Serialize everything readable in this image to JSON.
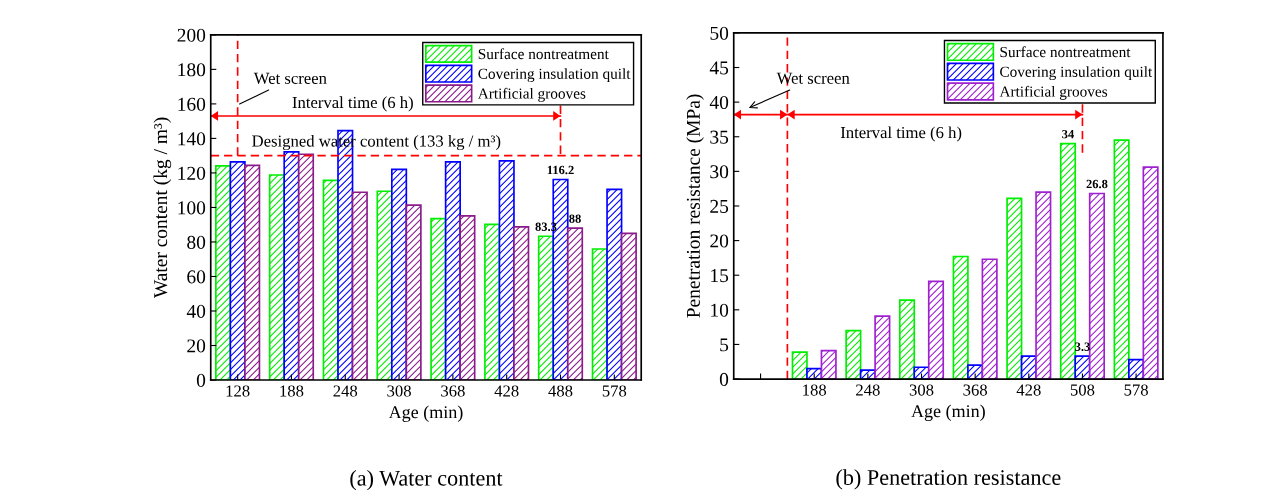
{
  "chart_data": [
    {
      "type": "bar",
      "title": "(a) Water content",
      "xlabel": "Age (min)",
      "ylabel": "Water content (kg / m³)",
      "categories": [
        "128",
        "188",
        "248",
        "308",
        "368",
        "428",
        "488",
        "578"
      ],
      "series": [
        {
          "name": "Surface nontreatment",
          "color": "#00ee00",
          "values": [
            124.1,
            118.8,
            115.7,
            109.4,
            93.5,
            90.2,
            83.3,
            75.9
          ],
          "value_labels": [
            null,
            null,
            null,
            null,
            null,
            null,
            "83.3",
            null
          ]
        },
        {
          "name": "Covering insulation quilt",
          "color": "#0000ff",
          "values": [
            126.4,
            132.2,
            144.5,
            122.1,
            126.4,
            127.0,
            116.2,
            110.5
          ],
          "value_labels": [
            null,
            null,
            null,
            null,
            null,
            null,
            "116.2",
            null
          ]
        },
        {
          "name": "Artificial grooves",
          "color": "#8b1a8b",
          "values": [
            124.4,
            130.8,
            108.8,
            101.3,
            95.1,
            88.7,
            88,
            85.0
          ],
          "value_labels": [
            null,
            null,
            null,
            null,
            null,
            null,
            "88",
            null
          ]
        }
      ],
      "ylim": [
        0,
        200
      ],
      "yticks": [
        0,
        20,
        40,
        60,
        80,
        100,
        120,
        140,
        160,
        180,
        200
      ],
      "ref_lines": [
        {
          "axis": "x",
          "value": "128",
          "label": "Wet screen",
          "color": "#ff0000",
          "line_style": "dashed"
        },
        {
          "axis": "x",
          "value": "488",
          "color": "#ff0000",
          "line_style": "dashed"
        },
        {
          "axis": "y",
          "value": 130,
          "label": "Designed water content (133 kg / m³)",
          "color": "#ff0000",
          "line_style": "dashed"
        },
        {
          "axis": "y",
          "value": 153,
          "label": "Interval time (6 h)",
          "color": "#ff0000",
          "line_style": "solid"
        }
      ],
      "legend": "top right",
      "grid": false
    },
    {
      "type": "bar",
      "title": "(b) Penetration resistance",
      "xlabel": "Age (min)",
      "ylabel": "Penetration resistance (MPa)",
      "categories": [
        null,
        "188",
        "248",
        "308",
        "368",
        "428",
        "508",
        "578"
      ],
      "series": [
        {
          "name": "Surface nontreatment",
          "color": "#00ee00",
          "values": [
            null,
            3.9,
            7.0,
            11.4,
            17.7,
            26.1,
            34,
            34.5
          ],
          "value_labels": [
            null,
            null,
            null,
            null,
            null,
            null,
            "34",
            null
          ]
        },
        {
          "name": "Covering insulation quilt",
          "color": "#0000ff",
          "values": [
            null,
            1.5,
            1.3,
            1.7,
            2.0,
            3.3,
            3.3,
            2.8
          ],
          "value_labels": [
            null,
            null,
            null,
            null,
            null,
            null,
            "3.3",
            null
          ]
        },
        {
          "name": "Artificial grooves",
          "color": "#a020d0",
          "values": [
            null,
            4.1,
            9.1,
            14.1,
            17.3,
            27.0,
            26.8,
            30.6
          ],
          "value_labels": [
            null,
            null,
            null,
            null,
            null,
            null,
            "26.8",
            null
          ]
        }
      ],
      "ylim": [
        0,
        50
      ],
      "yticks": [
        0,
        5,
        10,
        15,
        20,
        25,
        30,
        35,
        40,
        45,
        50
      ],
      "ref_lines": [
        {
          "axis": "x",
          "value": "188",
          "label": "Wet screen",
          "color": "#ff0000",
          "line_style": "dashed"
        },
        {
          "axis": "x",
          "value": "508",
          "color": "#ff0000",
          "line_style": "dashed"
        },
        {
          "axis": "y",
          "value": 38.2,
          "label": "Interval time (6 h)",
          "color": "#ff0000",
          "line_style": "solid"
        }
      ],
      "legend": "top right",
      "grid": false
    }
  ]
}
